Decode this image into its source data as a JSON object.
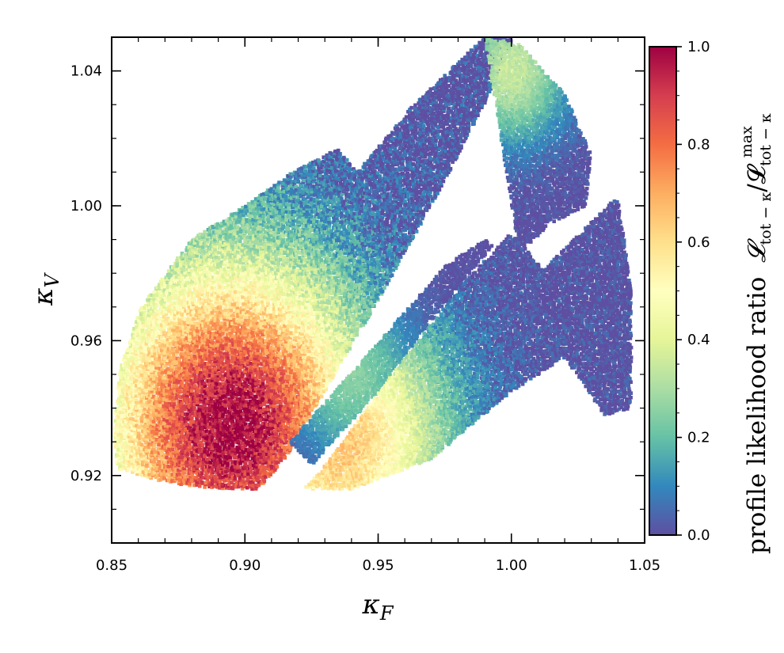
{
  "chart_data": {
    "type": "heatmap",
    "title": "",
    "xlabel": "κ_F",
    "ylabel": "κ_V",
    "xlim": [
      0.85,
      1.05
    ],
    "ylim": [
      0.9,
      1.05
    ],
    "xticks": [
      "0.85",
      "0.90",
      "0.95",
      "1.00",
      "1.05"
    ],
    "yticks": [
      "0.92",
      "0.96",
      "1.00",
      "1.04"
    ],
    "grid": false,
    "colorbar": {
      "label": "profile likelihood ratio 𝓛tot−κ/𝓛tot−κ max",
      "label_text": "profile likelihood ratio",
      "range": [
        0.0,
        1.0
      ],
      "ticks": [
        "0.0",
        "0.2",
        "0.4",
        "0.6",
        "0.8",
        "1.0"
      ],
      "colormap": "Spectral_r",
      "colors": [
        "#5e4fa2",
        "#3288bd",
        "#66c2a5",
        "#abdda4",
        "#e6f598",
        "#ffffbf",
        "#fee08b",
        "#fdae61",
        "#f46d43",
        "#d53e4f",
        "#9e0142"
      ]
    },
    "regions": [
      {
        "name": "lower-left sheet",
        "polygon": [
          [
            0.851,
            0.935
          ],
          [
            0.853,
            0.951
          ],
          [
            0.861,
            0.97
          ],
          [
            0.88,
            0.99
          ],
          [
            0.9,
            1.0
          ],
          [
            0.918,
            1.01
          ],
          [
            0.935,
            1.017
          ],
          [
            0.942,
            1.01
          ],
          [
            0.962,
            1.029
          ],
          [
            0.99,
            1.05
          ],
          [
            1.001,
            1.05
          ],
          [
            0.991,
            1.032
          ],
          [
            0.972,
            1.003
          ],
          [
            0.95,
            0.972
          ],
          [
            0.93,
            0.945
          ],
          [
            0.915,
            0.925
          ],
          [
            0.905,
            0.916
          ],
          [
            0.89,
            0.916
          ],
          [
            0.87,
            0.918
          ],
          [
            0.852,
            0.922
          ]
        ],
        "peak": [
          0.895,
          0.935
        ],
        "peak_value": 1.0
      },
      {
        "name": "thin middle band",
        "polygon": [
          [
            0.917,
            0.93
          ],
          [
            0.945,
            0.955
          ],
          [
            0.975,
            0.982
          ],
          [
            0.99,
            0.99
          ],
          [
            0.993,
            0.988
          ],
          [
            0.975,
            0.971
          ],
          [
            0.95,
            0.945
          ],
          [
            0.925,
            0.923
          ]
        ],
        "peak": [
          0.94,
          0.95
        ],
        "peak_value": 0.25
      },
      {
        "name": "upper-right region",
        "polygon": [
          [
            0.99,
            1.05
          ],
          [
            1.003,
            1.048
          ],
          [
            1.02,
            1.033
          ],
          [
            1.03,
            1.015
          ],
          [
            1.028,
            1.0
          ],
          [
            1.015,
            0.995
          ],
          [
            1.003,
            0.986
          ]
        ],
        "peak": [
          1.0,
          1.04
        ],
        "peak_value": 0.35
      },
      {
        "name": "right sheet",
        "polygon": [
          [
            0.922,
            0.916
          ],
          [
            0.932,
            0.925
          ],
          [
            0.96,
            0.955
          ],
          [
            0.983,
            0.978
          ],
          [
            1.0,
            0.992
          ],
          [
            1.012,
            0.981
          ],
          [
            1.04,
            1.003
          ],
          [
            1.045,
            0.975
          ],
          [
            1.045,
            0.94
          ],
          [
            1.035,
            0.938
          ],
          [
            1.02,
            0.955
          ],
          [
            1.0,
            0.945
          ],
          [
            0.97,
            0.925
          ],
          [
            0.94,
            0.916
          ]
        ],
        "peak": [
          0.935,
          0.93
        ],
        "peak_value": 0.65
      }
    ]
  }
}
